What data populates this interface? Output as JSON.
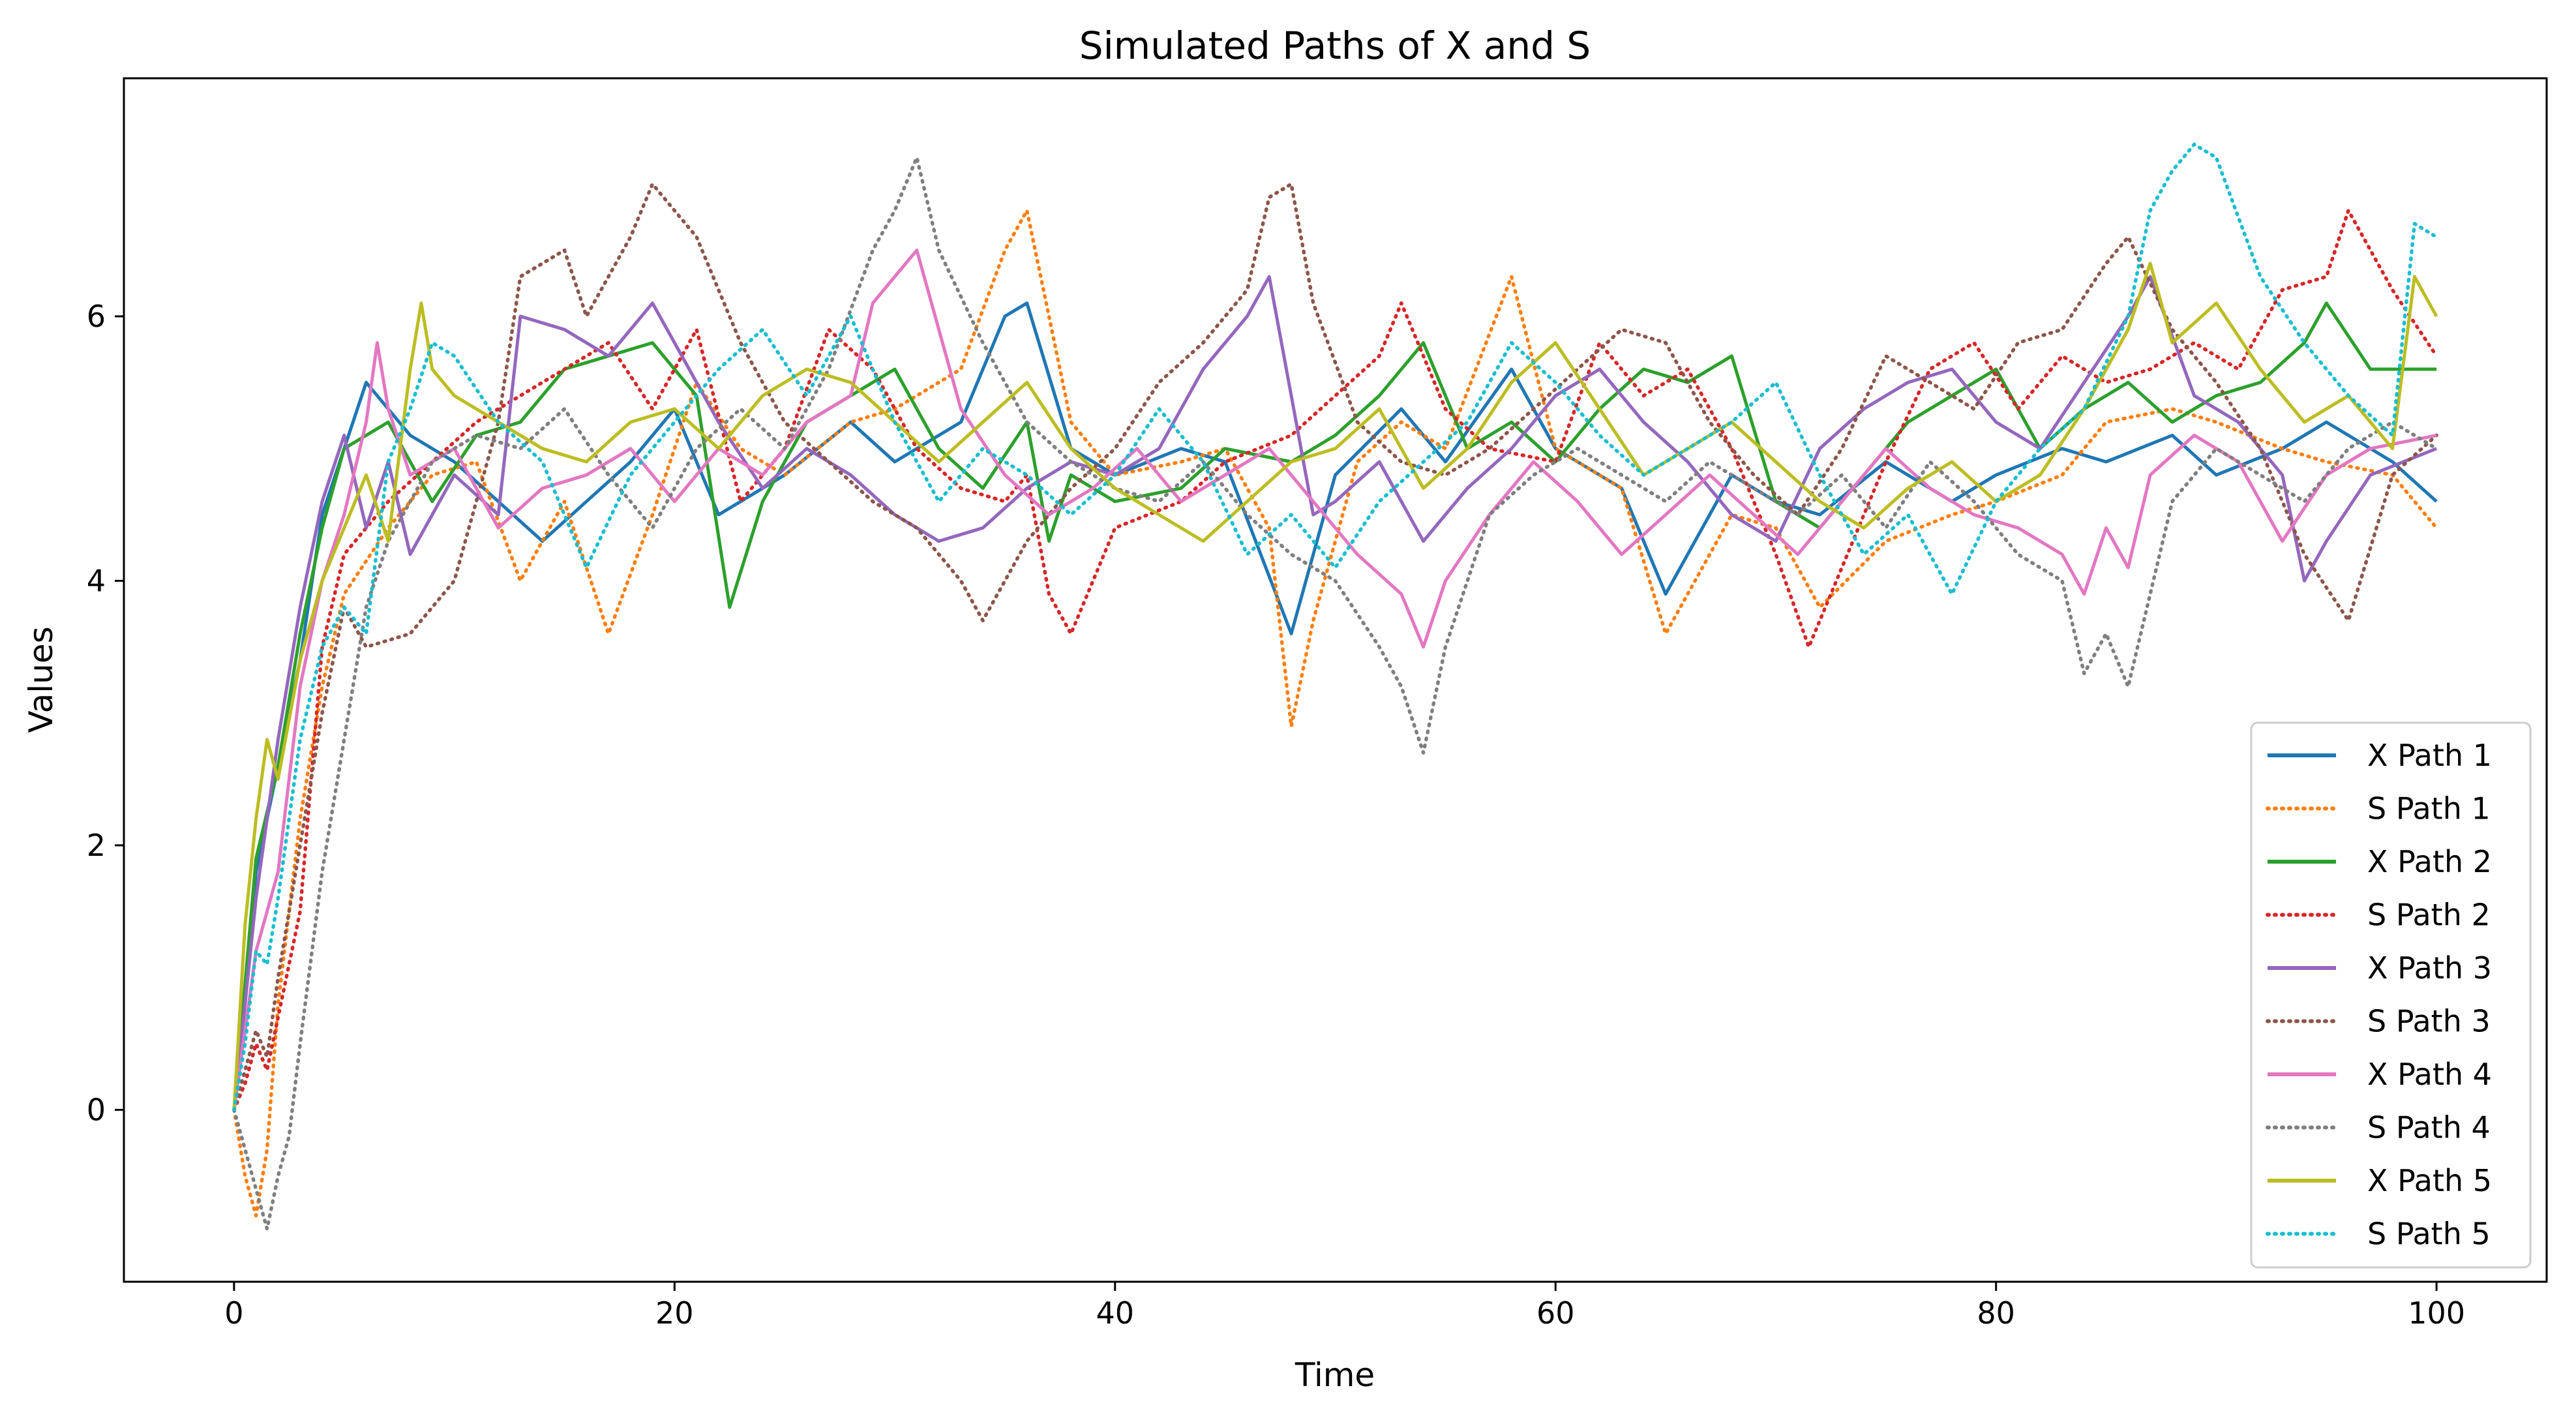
{
  "chart_data": {
    "type": "line",
    "title": "Simulated Paths of X and S",
    "xlabel": "Time",
    "ylabel": "Values",
    "xlim": [
      -5,
      105
    ],
    "ylim": [
      -1.3,
      7.8
    ],
    "xticks": [
      0,
      20,
      40,
      60,
      80,
      100
    ],
    "xtick_labels": [
      "0",
      "20",
      "40",
      "60",
      "80",
      "100"
    ],
    "yticks": [
      0,
      2,
      4,
      6
    ],
    "ytick_labels": [
      "0",
      "2",
      "4",
      "6"
    ],
    "grid": false,
    "legend_position": "lower-right",
    "series": [
      {
        "name": "X Path 1",
        "color": "#1f77b4",
        "style": "solid",
        "x": [
          0,
          1,
          2,
          3,
          4,
          6,
          8,
          10,
          12,
          14,
          16,
          18,
          20,
          22,
          25,
          28,
          30,
          33,
          35,
          36,
          38,
          40,
          43,
          45,
          48,
          50,
          53,
          55,
          58,
          60,
          63,
          65,
          68,
          70,
          72,
          75,
          78,
          80,
          83,
          85,
          88,
          90,
          93,
          95,
          98,
          100
        ],
        "y": [
          0.0,
          1.8,
          2.6,
          3.4,
          4.5,
          5.5,
          5.1,
          4.9,
          4.6,
          4.3,
          4.6,
          4.9,
          5.3,
          4.5,
          4.8,
          5.2,
          4.9,
          5.2,
          6.0,
          6.1,
          5.0,
          4.8,
          5.0,
          4.9,
          3.6,
          4.8,
          5.3,
          4.9,
          5.6,
          5.0,
          4.7,
          3.9,
          4.8,
          4.6,
          4.5,
          4.9,
          4.6,
          4.8,
          5.0,
          4.9,
          5.1,
          4.8,
          5.0,
          5.2,
          4.9,
          4.6
        ]
      },
      {
        "name": "S Path 1",
        "color": "#ff7f0e",
        "style": "dotted",
        "x": [
          0,
          0.5,
          1,
          1.5,
          2,
          3,
          4,
          5,
          7,
          9,
          11,
          13,
          15,
          17,
          19,
          21,
          23,
          25,
          28,
          30,
          33,
          35,
          36,
          37,
          38,
          40,
          43,
          45,
          47,
          48,
          49,
          51,
          53,
          55,
          58,
          60,
          63,
          65,
          68,
          70,
          72,
          75,
          78,
          80,
          83,
          85,
          88,
          90,
          93,
          95,
          98,
          100
        ],
        "y": [
          0.0,
          -0.5,
          -0.8,
          -0.3,
          0.8,
          2.2,
          3.2,
          3.9,
          4.4,
          4.8,
          4.9,
          4.0,
          4.6,
          3.6,
          4.5,
          5.5,
          5.0,
          4.8,
          5.2,
          5.3,
          5.6,
          6.5,
          6.8,
          6.0,
          5.2,
          4.8,
          4.9,
          5.0,
          4.4,
          2.9,
          3.7,
          4.9,
          5.2,
          5.0,
          6.3,
          5.0,
          4.7,
          3.6,
          4.5,
          4.4,
          3.8,
          4.3,
          4.5,
          4.6,
          4.8,
          5.2,
          5.3,
          5.2,
          5.0,
          4.9,
          4.8,
          4.4
        ]
      },
      {
        "name": "X Path 2",
        "color": "#2ca02c",
        "style": "solid",
        "x": [
          0,
          1,
          2,
          3,
          4,
          5,
          7,
          9,
          11,
          13,
          15,
          17,
          19,
          21,
          22.5,
          24,
          26,
          28,
          30,
          32,
          34,
          36,
          37,
          38,
          40,
          43,
          45,
          48,
          50,
          52,
          54,
          56,
          58,
          60,
          62,
          64,
          66,
          68,
          70,
          72,
          74,
          76,
          78,
          80,
          82,
          84,
          86,
          88,
          90,
          92,
          94,
          95,
          97,
          100
        ],
        "y": [
          0.0,
          1.9,
          2.6,
          3.6,
          4.4,
          5.0,
          5.2,
          4.6,
          5.1,
          5.2,
          5.6,
          5.7,
          5.8,
          5.4,
          3.8,
          4.6,
          5.2,
          5.4,
          5.6,
          5.0,
          4.7,
          5.2,
          4.3,
          4.8,
          4.6,
          4.7,
          5.0,
          4.9,
          5.1,
          5.4,
          5.8,
          5.0,
          5.2,
          4.9,
          5.3,
          5.6,
          5.5,
          5.7,
          4.6,
          4.4,
          4.8,
          5.2,
          5.4,
          5.6,
          5.0,
          5.3,
          5.5,
          5.2,
          5.4,
          5.5,
          5.8,
          6.1,
          5.6,
          5.6
        ]
      },
      {
        "name": "S Path 2",
        "color": "#d62728",
        "style": "dotted",
        "x": [
          0,
          0.5,
          1,
          1.5,
          2,
          3,
          4,
          5,
          7,
          9,
          11,
          13,
          15,
          17,
          19,
          21,
          23,
          25,
          27,
          29,
          31,
          33,
          35,
          36,
          37,
          38,
          40,
          43,
          45,
          48,
          50,
          52,
          53,
          55,
          57,
          60,
          62,
          64,
          66,
          68,
          70,
          71.5,
          73,
          75,
          77,
          79,
          81,
          83,
          85,
          87,
          89,
          91,
          93,
          95,
          96,
          98,
          100
        ],
        "y": [
          0.0,
          0.2,
          0.5,
          0.3,
          0.7,
          1.5,
          3.5,
          4.2,
          4.6,
          4.9,
          5.2,
          5.4,
          5.6,
          5.8,
          5.3,
          5.9,
          4.6,
          5.0,
          5.9,
          5.6,
          5.0,
          4.7,
          4.6,
          4.8,
          3.9,
          3.6,
          4.4,
          4.6,
          4.9,
          5.1,
          5.4,
          5.7,
          6.1,
          5.3,
          5.0,
          4.9,
          5.8,
          5.4,
          5.6,
          5.0,
          4.2,
          3.5,
          4.1,
          4.9,
          5.6,
          5.8,
          5.3,
          5.7,
          5.5,
          5.6,
          5.8,
          5.6,
          6.2,
          6.3,
          6.8,
          6.2,
          5.7
        ]
      },
      {
        "name": "X Path 3",
        "color": "#9467bd",
        "style": "solid",
        "x": [
          0,
          1,
          2,
          3,
          4,
          5,
          6,
          7,
          8,
          10,
          12,
          13,
          15,
          17,
          19,
          20,
          22,
          24,
          26,
          28,
          30,
          32,
          34,
          36,
          38,
          40,
          42,
          44,
          46,
          47,
          48,
          49,
          50,
          52,
          54,
          56,
          58,
          60,
          62,
          64,
          66,
          68,
          70,
          72,
          74,
          76,
          78,
          80,
          82,
          84,
          86,
          87,
          89,
          91,
          93,
          94,
          95,
          97,
          100
        ],
        "y": [
          0.0,
          1.6,
          2.8,
          3.8,
          4.6,
          5.1,
          4.4,
          4.9,
          4.2,
          4.8,
          4.5,
          6.0,
          5.9,
          5.7,
          6.1,
          5.8,
          5.2,
          4.7,
          5.0,
          4.8,
          4.5,
          4.3,
          4.4,
          4.7,
          4.9,
          4.8,
          5.0,
          5.6,
          6.0,
          6.3,
          5.4,
          4.5,
          4.6,
          4.9,
          4.3,
          4.7,
          5.0,
          5.4,
          5.6,
          5.2,
          4.9,
          4.5,
          4.3,
          5.0,
          5.3,
          5.5,
          5.6,
          5.2,
          5.0,
          5.5,
          6.0,
          6.3,
          5.4,
          5.2,
          4.8,
          4.0,
          4.3,
          4.8,
          5.0
        ]
      },
      {
        "name": "S Path 3",
        "color": "#8c564b",
        "style": "dotted",
        "x": [
          0,
          0.5,
          1,
          1.5,
          2,
          3,
          4,
          5,
          6,
          8,
          10,
          12,
          13,
          15,
          16,
          18,
          19,
          21,
          23,
          25,
          27,
          29,
          31,
          33,
          34,
          36,
          38,
          40,
          42,
          44,
          46,
          47,
          48,
          49,
          51,
          53,
          55,
          57,
          59,
          61,
          63,
          65,
          67,
          69,
          71,
          73,
          75,
          77,
          79,
          81,
          83,
          85,
          86,
          88,
          90,
          92,
          94,
          96,
          98,
          100
        ],
        "y": [
          0.0,
          0.3,
          0.6,
          0.4,
          1.0,
          2.0,
          3.0,
          3.8,
          3.5,
          3.6,
          4.0,
          5.2,
          6.3,
          6.5,
          6.0,
          6.6,
          7.0,
          6.6,
          5.8,
          5.2,
          4.9,
          4.6,
          4.4,
          4.0,
          3.7,
          4.3,
          4.7,
          5.0,
          5.5,
          5.8,
          6.2,
          6.9,
          7.0,
          6.1,
          5.2,
          4.9,
          4.8,
          5.0,
          5.3,
          5.6,
          5.9,
          5.8,
          5.2,
          4.8,
          4.5,
          5.0,
          5.7,
          5.5,
          5.3,
          5.8,
          5.9,
          6.4,
          6.6,
          5.9,
          5.5,
          5.0,
          4.2,
          3.7,
          4.8,
          5.1
        ]
      },
      {
        "name": "X Path 4",
        "color": "#e377c2",
        "style": "solid",
        "x": [
          0,
          1,
          2,
          3,
          4,
          5,
          6,
          6.5,
          7,
          8,
          10,
          12,
          14,
          16,
          18,
          20,
          22,
          24,
          26,
          28,
          29,
          30,
          31,
          32,
          33,
          35,
          37,
          39,
          41,
          43,
          45,
          47,
          49,
          51,
          53,
          54,
          55,
          57,
          59,
          61,
          63,
          65,
          67,
          69,
          71,
          73,
          75,
          77,
          79,
          81,
          83,
          84,
          85,
          86,
          87,
          89,
          91,
          93,
          95,
          97,
          100
        ],
        "y": [
          0.0,
          1.2,
          1.8,
          3.2,
          4.0,
          4.5,
          5.2,
          5.8,
          5.3,
          4.8,
          5.0,
          4.4,
          4.7,
          4.8,
          5.0,
          4.6,
          5.0,
          4.8,
          5.2,
          5.4,
          6.1,
          6.3,
          6.5,
          5.9,
          5.3,
          4.8,
          4.5,
          4.7,
          5.0,
          4.6,
          4.8,
          5.0,
          4.6,
          4.2,
          3.9,
          3.5,
          4.0,
          4.5,
          4.9,
          4.6,
          4.2,
          4.5,
          4.8,
          4.5,
          4.2,
          4.6,
          5.0,
          4.7,
          4.5,
          4.4,
          4.2,
          3.9,
          4.4,
          4.1,
          4.8,
          5.1,
          4.9,
          4.3,
          4.8,
          5.0,
          5.1
        ]
      },
      {
        "name": "S Path 4",
        "color": "#7f7f7f",
        "style": "dotted",
        "x": [
          0,
          0.5,
          1,
          1.5,
          2,
          2.5,
          3,
          4,
          5,
          6,
          7,
          9,
          11,
          13,
          15,
          17,
          19,
          21,
          23,
          25,
          27,
          29,
          30,
          31,
          32,
          34,
          36,
          38,
          40,
          42,
          44,
          46,
          48,
          50,
          52,
          53,
          54,
          55,
          57,
          59,
          61,
          63,
          65,
          67,
          69,
          71,
          73,
          75,
          77,
          79,
          81,
          83,
          84,
          85,
          86,
          88,
          90,
          92,
          94,
          96,
          98,
          100
        ],
        "y": [
          0.0,
          -0.3,
          -0.6,
          -0.9,
          -0.5,
          -0.2,
          0.5,
          1.8,
          2.8,
          3.8,
          4.3,
          4.9,
          5.1,
          5.0,
          5.3,
          4.8,
          4.4,
          5.0,
          5.3,
          5.0,
          5.6,
          6.5,
          6.8,
          7.2,
          6.5,
          5.8,
          5.2,
          4.9,
          4.7,
          4.6,
          4.9,
          4.5,
          4.2,
          4.0,
          3.5,
          3.2,
          2.7,
          3.5,
          4.5,
          4.8,
          5.0,
          4.8,
          4.6,
          4.9,
          4.7,
          4.5,
          4.8,
          4.4,
          4.9,
          4.6,
          4.2,
          4.0,
          3.3,
          3.6,
          3.2,
          4.6,
          5.0,
          4.8,
          4.6,
          5.0,
          5.2,
          5.0
        ]
      },
      {
        "name": "X Path 5",
        "color": "#bcbd22",
        "style": "solid",
        "x": [
          0,
          0.5,
          1,
          1.5,
          2,
          3,
          4,
          5,
          6,
          7,
          8,
          8.5,
          9,
          10,
          12,
          14,
          16,
          18,
          20,
          22,
          24,
          26,
          28,
          30,
          32,
          34,
          36,
          38,
          40,
          42,
          44,
          46,
          48,
          50,
          52,
          54,
          56,
          58,
          60,
          62,
          64,
          66,
          68,
          70,
          72,
          74,
          76,
          78,
          80,
          82,
          84,
          86,
          87,
          88,
          90,
          92,
          94,
          96,
          98,
          99,
          100
        ],
        "y": [
          0.0,
          1.4,
          2.2,
          2.8,
          2.5,
          3.4,
          4.0,
          4.4,
          4.8,
          4.3,
          5.6,
          6.1,
          5.6,
          5.4,
          5.2,
          5.0,
          4.9,
          5.2,
          5.3,
          5.0,
          5.4,
          5.6,
          5.5,
          5.2,
          4.9,
          5.2,
          5.5,
          5.0,
          4.7,
          4.5,
          4.3,
          4.6,
          4.9,
          5.0,
          5.3,
          4.7,
          5.0,
          5.5,
          5.8,
          5.3,
          4.8,
          5.0,
          5.2,
          4.9,
          4.6,
          4.4,
          4.7,
          4.9,
          4.6,
          4.8,
          5.3,
          5.9,
          6.4,
          5.8,
          6.1,
          5.6,
          5.2,
          5.4,
          5.0,
          6.3,
          6.0
        ]
      },
      {
        "name": "S Path 5",
        "color": "#17becf",
        "style": "dotted",
        "x": [
          0,
          0.5,
          1,
          1.5,
          2,
          3,
          4,
          5,
          6,
          7,
          8,
          9,
          10,
          12,
          14,
          16,
          18,
          20,
          22,
          24,
          26,
          28,
          30,
          32,
          34,
          36,
          38,
          40,
          42,
          44,
          46,
          48,
          50,
          52,
          54,
          56,
          58,
          60,
          62,
          64,
          66,
          68,
          70,
          72,
          74,
          76,
          78,
          80,
          82,
          84,
          86,
          87,
          88,
          89,
          90,
          92,
          94,
          96,
          98,
          99,
          100
        ],
        "y": [
          0.0,
          0.5,
          1.2,
          1.1,
          1.6,
          2.8,
          3.5,
          3.8,
          3.6,
          4.9,
          5.3,
          5.8,
          5.7,
          5.2,
          4.9,
          4.1,
          4.8,
          5.2,
          5.6,
          5.9,
          5.4,
          6.0,
          5.2,
          4.6,
          5.0,
          4.8,
          4.5,
          4.8,
          5.3,
          4.9,
          4.2,
          4.5,
          4.1,
          4.6,
          4.9,
          5.2,
          5.8,
          5.5,
          5.1,
          4.8,
          5.0,
          5.2,
          5.5,
          4.8,
          4.2,
          4.5,
          3.9,
          4.6,
          5.0,
          5.3,
          6.0,
          6.8,
          7.1,
          7.3,
          7.2,
          6.3,
          5.8,
          5.4,
          5.1,
          6.7,
          6.6
        ]
      }
    ]
  }
}
